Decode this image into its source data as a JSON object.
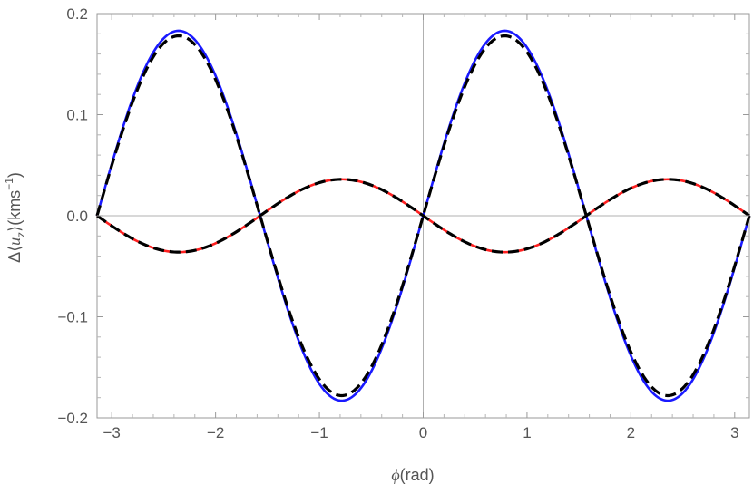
{
  "chart_data": {
    "type": "line",
    "xlabel_symbol": "ϕ",
    "xlabel_unit": "(rad)",
    "ylabel_prefix": "Δ⟨",
    "ylabel_var": "u",
    "ylabel_sub": "z",
    "ylabel_mid": "⟩(kms",
    "ylabel_sup": "−1",
    "ylabel_end": ")",
    "xlim": [
      -3.14159,
      3.14159
    ],
    "ylim": [
      -0.2,
      0.2
    ],
    "x_ticks": [
      -3,
      -2,
      -1,
      0,
      1,
      2,
      3
    ],
    "x_tick_labels": [
      "−3",
      "−2",
      "−1",
      "0",
      "1",
      "2",
      "3"
    ],
    "y_ticks": [
      -0.2,
      -0.1,
      0.0,
      0.1,
      0.2
    ],
    "y_tick_labels": [
      "−0.2",
      "−0.1",
      "0.0",
      "0.1",
      "0.2"
    ],
    "series": [
      {
        "function": "A*sin(2*x)",
        "amplitude": 0.183,
        "color": "#1a1aff",
        "style": "solid"
      },
      {
        "function": "A*sin(2*x)",
        "amplitude": 0.178,
        "color": "#000000",
        "style": "dashed"
      },
      {
        "function": "-A*sin(2*x)",
        "amplitude": 0.036,
        "color": "#ff2020",
        "style": "solid"
      },
      {
        "function": "-A*sin(2*x)",
        "amplitude": 0.036,
        "color": "#000000",
        "style": "dashed"
      }
    ]
  }
}
